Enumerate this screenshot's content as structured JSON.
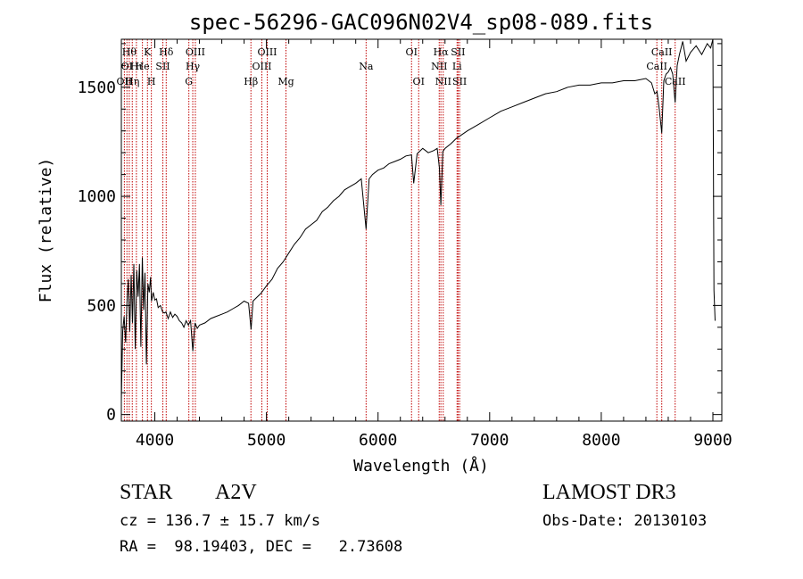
{
  "chart_data": {
    "type": "line",
    "title": "spec-56296-GAC096N02V4_sp08-089.fits",
    "xlabel": "Wavelength (Å)",
    "ylabel": "Flux (relative)",
    "xlim": [
      3700,
      9080
    ],
    "ylim": [
      -30,
      1720
    ],
    "x_ticks": [
      4000,
      5000,
      6000,
      7000,
      8000,
      9000
    ],
    "x_tick_labels": [
      "4000",
      "5000",
      "6000",
      "7000",
      "8000",
      "9000"
    ],
    "y_ticks": [
      0,
      500,
      1000,
      1500
    ],
    "y_tick_labels": [
      "0",
      "500",
      "1000",
      "1500"
    ],
    "series": [
      {
        "name": "spectrum",
        "x": [
          3700,
          3712,
          3725,
          3738,
          3750,
          3762,
          3775,
          3788,
          3800,
          3812,
          3825,
          3838,
          3850,
          3862,
          3875,
          3888,
          3900,
          3912,
          3925,
          3938,
          3950,
          3962,
          3970,
          3985,
          4000,
          4015,
          4030,
          4050,
          4070,
          4085,
          4100,
          4120,
          4140,
          4160,
          4180,
          4200,
          4220,
          4240,
          4260,
          4280,
          4300,
          4320,
          4340,
          4360,
          4380,
          4400,
          4450,
          4500,
          4550,
          4600,
          4650,
          4700,
          4750,
          4800,
          4840,
          4862,
          4880,
          4900,
          4950,
          5000,
          5050,
          5100,
          5150,
          5200,
          5250,
          5300,
          5350,
          5400,
          5450,
          5500,
          5550,
          5600,
          5650,
          5700,
          5750,
          5800,
          5850,
          5893,
          5920,
          5950,
          6000,
          6050,
          6100,
          6150,
          6200,
          6250,
          6300,
          6320,
          6350,
          6400,
          6450,
          6500,
          6530,
          6550,
          6563,
          6580,
          6600,
          6650,
          6700,
          6800,
          6900,
          7000,
          7100,
          7200,
          7300,
          7400,
          7500,
          7600,
          7700,
          7800,
          7900,
          8000,
          8100,
          8200,
          8300,
          8400,
          8450,
          8480,
          8500,
          8520,
          8542,
          8560,
          8580,
          8600,
          8620,
          8640,
          8662,
          8680,
          8700,
          8730,
          8760,
          8800,
          8850,
          8900,
          8950,
          8980,
          9000,
          9010,
          9020
        ],
        "y": [
          60,
          380,
          450,
          330,
          510,
          620,
          380,
          640,
          420,
          690,
          300,
          660,
          540,
          690,
          310,
          720,
          480,
          650,
          230,
          600,
          560,
          630,
          520,
          560,
          525,
          530,
          490,
          500,
          470,
          465,
          470,
          440,
          470,
          445,
          460,
          450,
          430,
          420,
          400,
          430,
          410,
          430,
          290,
          420,
          395,
          410,
          420,
          440,
          450,
          460,
          470,
          485,
          500,
          520,
          510,
          390,
          520,
          530,
          555,
          590,
          620,
          670,
          700,
          740,
          780,
          810,
          850,
          870,
          890,
          930,
          950,
          980,
          1000,
          1030,
          1045,
          1060,
          1080,
          850,
          1080,
          1100,
          1120,
          1130,
          1150,
          1160,
          1170,
          1185,
          1190,
          1060,
          1195,
          1220,
          1200,
          1210,
          1220,
          1130,
          960,
          1205,
          1220,
          1240,
          1265,
          1300,
          1330,
          1360,
          1390,
          1410,
          1430,
          1450,
          1470,
          1480,
          1500,
          1510,
          1510,
          1520,
          1520,
          1530,
          1530,
          1540,
          1520,
          1470,
          1480,
          1400,
          1290,
          1530,
          1560,
          1570,
          1590,
          1560,
          1430,
          1600,
          1650,
          1710,
          1620,
          1660,
          1690,
          1650,
          1700,
          1680,
          1720,
          570,
          430
        ]
      }
    ],
    "line_labels": [
      {
        "wavelength": 3727,
        "label": "OII",
        "row": 3
      },
      {
        "wavelength": 3750,
        "label": "OI",
        "row": 2
      },
      {
        "wavelength": 3771,
        "label": "Hθ",
        "row": 1
      },
      {
        "wavelength": 3798,
        "label": "Hη",
        "row": 3
      },
      {
        "wavelength": 3835,
        "label": "Hι",
        "row": 2
      },
      {
        "wavelength": 3889,
        "label": "He",
        "row": 2
      },
      {
        "wavelength": 3934,
        "label": "K",
        "row": 1
      },
      {
        "wavelength": 3969,
        "label": "H",
        "row": 3
      },
      {
        "wavelength": 4072,
        "label": "SII",
        "row": 2
      },
      {
        "wavelength": 4102,
        "label": "Hδ",
        "row": 1
      },
      {
        "wavelength": 4305,
        "label": "G",
        "row": 3
      },
      {
        "wavelength": 4340,
        "label": "Hγ",
        "row": 2
      },
      {
        "wavelength": 4363,
        "label": "OIII",
        "row": 1
      },
      {
        "wavelength": 4861,
        "label": "Hβ",
        "row": 3
      },
      {
        "wavelength": 4959,
        "label": "OIII",
        "row": 2
      },
      {
        "wavelength": 5007,
        "label": "OIII",
        "row": 1
      },
      {
        "wavelength": 5175,
        "label": "Mg",
        "row": 3
      },
      {
        "wavelength": 5893,
        "label": "Na",
        "row": 2
      },
      {
        "wavelength": 6300,
        "label": "OI",
        "row": 1
      },
      {
        "wavelength": 6364,
        "label": "OI",
        "row": 3
      },
      {
        "wavelength": 6548,
        "label": "NII",
        "row": 2
      },
      {
        "wavelength": 6563,
        "label": "Hα",
        "row": 1
      },
      {
        "wavelength": 6584,
        "label": "NII",
        "row": 3
      },
      {
        "wavelength": 6708,
        "label": "Li",
        "row": 2
      },
      {
        "wavelength": 6717,
        "label": "SII",
        "row": 1
      },
      {
        "wavelength": 6731,
        "label": "SII",
        "row": 3
      },
      {
        "wavelength": 8498,
        "label": "CaII",
        "row": 2
      },
      {
        "wavelength": 8542,
        "label": "CaII",
        "row": 1
      },
      {
        "wavelength": 8662,
        "label": "CaII",
        "row": 3
      }
    ]
  },
  "info": {
    "object_class": "STAR",
    "subclass": "A2V",
    "survey": "LAMOST DR3",
    "redshift": "cz = 136.7 ± 15.7 km/s",
    "obs_date": "Obs-Date: 20130103",
    "coords": "RA =  98.19403, DEC =   2.73608"
  },
  "colors": {
    "spectrum": "#000000",
    "line_marker": "#c00000",
    "axis": "#000000"
  }
}
